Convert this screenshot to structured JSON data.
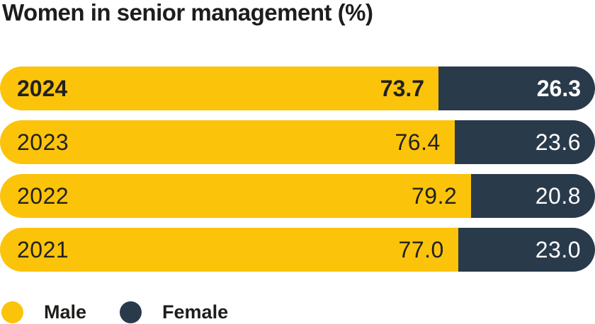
{
  "title": "Women in senior management (%)",
  "colors": {
    "male": "#FCC30B",
    "female": "#293A4B",
    "text_dark": "#1D1D1B",
    "text_on_dark": "#FFFFFF",
    "background": "#FFFFFF"
  },
  "rows": [
    {
      "year": "2024",
      "male_label": "73.7",
      "female_label": "26.3"
    },
    {
      "year": "2023",
      "male_label": "76.4",
      "female_label": "23.6"
    },
    {
      "year": "2022",
      "male_label": "79.2",
      "female_label": "20.8"
    },
    {
      "year": "2021",
      "male_label": "77.0",
      "female_label": "23.0"
    }
  ],
  "chart_data": {
    "type": "bar",
    "orientation": "horizontal",
    "stacked": true,
    "unit": "%",
    "title": "Women in senior management (%)",
    "categories": [
      "2024",
      "2023",
      "2022",
      "2021"
    ],
    "series": [
      {
        "name": "Male",
        "color": "#FCC30B",
        "values": [
          73.7,
          76.4,
          79.2,
          77.0
        ]
      },
      {
        "name": "Female",
        "color": "#293A4B",
        "values": [
          26.3,
          23.6,
          20.8,
          23.0
        ]
      }
    ],
    "xlim": [
      0,
      100
    ],
    "value_labels": "inside-end",
    "highlighted_category": "2024",
    "grid": false,
    "legend_position": "bottom-left"
  },
  "legend": {
    "items": [
      {
        "label": "Male",
        "color": "#FCC30B"
      },
      {
        "label": "Female",
        "color": "#293A4B"
      }
    ]
  }
}
